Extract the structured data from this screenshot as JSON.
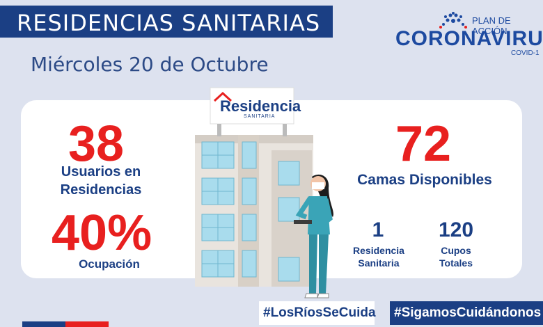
{
  "header": {
    "title": "RESIDENCIAS SANITARIAS",
    "date": "Miércoles 20 de Octubre"
  },
  "logo": {
    "plan": "PLAN DE ACCIÓN",
    "brand": "CORONAVIRUS",
    "sub": "COVID-1"
  },
  "sign": {
    "name": "Residencia",
    "sub": "SANITARIA"
  },
  "stats": {
    "users_value": "38",
    "users_label_1": "Usuarios en",
    "users_label_2": "Residencias",
    "occupancy_value": "40%",
    "occupancy_label": "Ocupación",
    "beds_value": "72",
    "beds_label": "Camas Disponibles",
    "residences_value": "1",
    "residences_label_1": "Residencia",
    "residences_label_2": "Sanitaria",
    "slots_value": "120",
    "slots_label_1": "Cupos",
    "slots_label_2": "Totales"
  },
  "hashtags": {
    "tag1": "#LosRíosSeCuida",
    "tag2": "#SigamosCuidándonos"
  },
  "colors": {
    "navy": "#1b3f84",
    "red": "#e8201f",
    "background": "#dde2ef"
  }
}
